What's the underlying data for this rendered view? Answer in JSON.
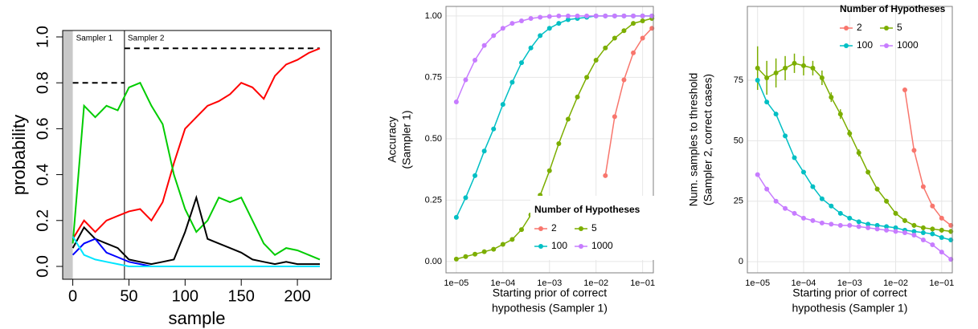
{
  "chart_data": [
    {
      "type": "line",
      "xlabel": "sample",
      "ylabel": "probability",
      "x": [
        0,
        10,
        20,
        30,
        40,
        50,
        60,
        70,
        80,
        90,
        100,
        110,
        120,
        130,
        140,
        150,
        160,
        170,
        180,
        190,
        200,
        210,
        220
      ],
      "xlim": [
        -9,
        230
      ],
      "xticks": [
        0,
        50,
        100,
        150,
        200
      ],
      "ylim": [
        -0.056,
        1.028
      ],
      "yticks": [
        {
          "value": 0,
          "label": "0.0"
        },
        0.2,
        0.4,
        0.6,
        0.8,
        {
          "value": 1,
          "label": "1.0"
        }
      ],
      "grid": false,
      "frame_color": "#000000",
      "series": [
        {
          "color": "#ff0000",
          "values": [
            0.12,
            0.2,
            0.15,
            0.2,
            0.22,
            0.24,
            0.25,
            0.2,
            0.28,
            0.45,
            0.6,
            0.65,
            0.7,
            0.72,
            0.75,
            0.8,
            0.78,
            0.73,
            0.83,
            0.88,
            0.9,
            0.93,
            0.95
          ]
        },
        {
          "color": "#00cc00",
          "values": [
            0.1,
            0.7,
            0.65,
            0.7,
            0.68,
            0.78,
            0.8,
            0.7,
            0.62,
            0.4,
            0.25,
            0.15,
            0.2,
            0.3,
            0.28,
            0.3,
            0.2,
            0.1,
            0.05,
            0.08,
            0.07,
            0.05,
            0.03
          ]
        },
        {
          "color": "#000000",
          "values": [
            0.08,
            0.17,
            0.12,
            0.1,
            0.08,
            0.03,
            0.02,
            0.01,
            0.02,
            0.03,
            0.15,
            0.3,
            0.12,
            0.1,
            0.08,
            0.06,
            0.03,
            0.02,
            0.01,
            0.02,
            0.01,
            0.01,
            0.01
          ]
        },
        {
          "color": "#0000ff",
          "values": [
            0.05,
            0.1,
            0.12,
            0.06,
            0.04,
            0.02,
            0.01,
            0,
            0,
            0,
            0,
            0,
            0,
            0,
            0,
            0,
            0,
            0,
            0,
            0,
            0,
            0,
            0
          ]
        },
        {
          "color": "#00e5ff",
          "values": [
            0.13,
            0.05,
            0.03,
            0.02,
            0.01,
            0,
            0,
            0,
            0,
            0,
            0,
            0,
            0,
            0,
            0,
            0,
            0,
            0,
            0,
            0,
            0,
            0,
            0
          ]
        }
      ],
      "prior_bar_color": "#c8c8c8",
      "reference_lines": [
        {
          "y": 0.8,
          "x": [
            0,
            46
          ]
        },
        {
          "y": 0.95,
          "x": [
            46,
            220
          ]
        }
      ],
      "vlines": [
        46
      ],
      "annotations": [
        {
          "text": "Sampler 1",
          "x": 0
        },
        {
          "text": "Sampler 2",
          "x": 46
        }
      ]
    },
    {
      "type": "line",
      "markers": true,
      "log_x": true,
      "xlabel": [
        "Starting prior of correct",
        "hypothesis (Sampler 1)"
      ],
      "ylabel": [
        "Accuracy",
        "(Sampler 1)"
      ],
      "x": [
        1e-05,
        1.585e-05,
        2.512e-05,
        3.981e-05,
        6.31e-05,
        0.0001,
        0.0001585,
        0.0002512,
        0.0003981,
        0.000631,
        0.001,
        0.001585,
        0.002512,
        0.003981,
        0.00631,
        0.01,
        0.01585,
        0.02512,
        0.03981,
        0.0631,
        0.1,
        0.1585
      ],
      "xlim": [
        6e-06,
        0.17
      ],
      "xticks": [
        {
          "value": 1e-05,
          "label": "1e−05"
        },
        {
          "value": 0.0001,
          "label": "1e−04"
        },
        {
          "value": 0.001,
          "label": "1e−03"
        },
        {
          "value": 0.01,
          "label": "1e−02"
        },
        {
          "value": 0.1,
          "label": "1e−01"
        }
      ],
      "ylim": [
        -0.046,
        1.039
      ],
      "yticks": [
        {
          "value": 0,
          "label": "0.00"
        },
        0.25,
        {
          "value": 0.5,
          "label": "0.50"
        },
        0.75,
        {
          "value": 1,
          "label": "1.00"
        }
      ],
      "grid": true,
      "frame_color": "#7f7f7f",
      "legend_title": "Number of Hypotheses",
      "legend_position": "bottom-right",
      "series": [
        {
          "name": "2",
          "color": "#F8766D",
          "values": [
            null,
            null,
            null,
            null,
            null,
            null,
            null,
            null,
            null,
            null,
            null,
            null,
            null,
            null,
            null,
            null,
            0.35,
            0.59,
            0.74,
            0.85,
            0.91,
            0.95
          ]
        },
        {
          "name": "5",
          "color": "#7CAE00",
          "values": [
            0.01,
            0.02,
            0.03,
            0.04,
            0.05,
            0.07,
            0.09,
            0.13,
            0.19,
            0.27,
            0.37,
            0.48,
            0.58,
            0.67,
            0.75,
            0.82,
            0.87,
            0.91,
            0.94,
            0.97,
            0.98,
            0.99
          ]
        },
        {
          "name": "100",
          "color": "#00BFC4",
          "values": [
            0.18,
            0.26,
            0.35,
            0.45,
            0.54,
            0.64,
            0.73,
            0.81,
            0.87,
            0.92,
            0.95,
            0.97,
            0.985,
            0.99,
            0.995,
            1,
            1,
            1,
            1,
            1,
            1,
            1
          ]
        },
        {
          "name": "1000",
          "color": "#C77CFF",
          "values": [
            0.65,
            0.74,
            0.82,
            0.88,
            0.92,
            0.95,
            0.97,
            0.98,
            0.99,
            0.995,
            0.998,
            1,
            1,
            1,
            1,
            1,
            1,
            1,
            1,
            1,
            1,
            1
          ]
        }
      ]
    },
    {
      "type": "line",
      "markers": true,
      "log_x": true,
      "xlabel": [
        "Starting prior of correct",
        "hypothesis (Sampler 1)"
      ],
      "ylabel": [
        "Num. samples to threshold",
        "(Sampler 2, correct cases)"
      ],
      "x": [
        1e-05,
        1.585e-05,
        2.512e-05,
        3.981e-05,
        6.31e-05,
        0.0001,
        0.0001585,
        0.0002512,
        0.0003981,
        0.000631,
        0.001,
        0.001585,
        0.002512,
        0.003981,
        0.00631,
        0.01,
        0.01585,
        0.02512,
        0.03981,
        0.0631,
        0.1,
        0.1585
      ],
      "xlim": [
        6e-06,
        0.17
      ],
      "xticks": [
        {
          "value": 1e-05,
          "label": "1e−05"
        },
        {
          "value": 0.0001,
          "label": "1e−04"
        },
        {
          "value": 0.001,
          "label": "1e−03"
        },
        {
          "value": 0.01,
          "label": "1e−02"
        },
        {
          "value": 0.1,
          "label": "1e−01"
        }
      ],
      "ylim": [
        -4.6,
        105.5
      ],
      "yticks": [
        0,
        25,
        50,
        75
      ],
      "grid": true,
      "frame_color": "#7f7f7f",
      "legend_title": "Number of Hypotheses",
      "legend_position": "top-right",
      "series": [
        {
          "name": "2",
          "color": "#F8766D",
          "values": [
            null,
            null,
            null,
            null,
            null,
            null,
            null,
            null,
            null,
            null,
            null,
            null,
            null,
            null,
            null,
            null,
            71,
            46,
            31,
            23,
            18,
            15
          ]
        },
        {
          "name": "5",
          "color": "#7CAE00",
          "values": [
            80,
            76,
            78,
            80,
            82,
            81,
            80,
            76,
            68,
            61,
            53,
            45,
            37,
            30,
            25,
            20,
            17,
            15,
            14,
            13.5,
            13,
            12.5
          ],
          "errors": [
            9,
            7,
            6,
            5,
            4,
            4,
            3,
            3,
            2,
            2,
            1.5,
            1.5,
            1,
            1,
            1,
            1,
            1,
            1,
            1,
            1,
            1,
            1
          ]
        },
        {
          "name": "100",
          "color": "#00BFC4",
          "values": [
            75,
            66,
            61,
            52,
            43,
            37,
            31,
            26,
            23,
            20,
            18,
            16.5,
            15.5,
            15,
            14.5,
            14,
            13,
            12.5,
            12,
            11.5,
            10,
            9
          ]
        },
        {
          "name": "1000",
          "color": "#C77CFF",
          "values": [
            36,
            30,
            25,
            22,
            20,
            18,
            17,
            16,
            15.5,
            15,
            15,
            14.5,
            14,
            13.5,
            13,
            12.5,
            12,
            11,
            9,
            7,
            4,
            1
          ]
        }
      ]
    }
  ]
}
